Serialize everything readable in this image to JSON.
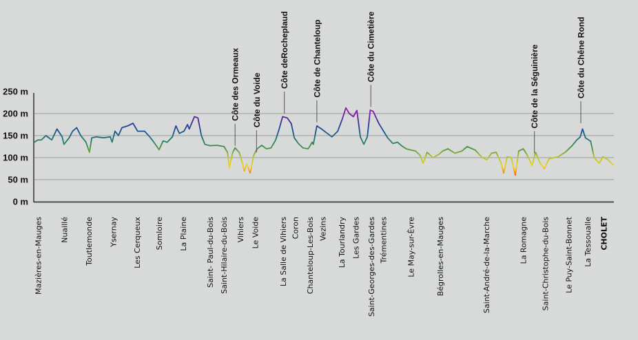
{
  "chart_data": {
    "type": "line",
    "title": "",
    "xlabel": "",
    "ylabel": "",
    "x_unit": "percent of route",
    "xlim": [
      0,
      100
    ],
    "ylim": [
      0,
      250
    ],
    "grid": true,
    "y_ticks": [
      {
        "value": 0,
        "label": "0 m"
      },
      {
        "value": 50,
        "label": "50 m"
      },
      {
        "value": 100,
        "label": "100 m"
      },
      {
        "value": 150,
        "label": "150 m"
      },
      {
        "value": 200,
        "label": "200 m"
      },
      {
        "value": 250,
        "label": "250 m"
      }
    ],
    "color_scale": [
      {
        "elev": 50,
        "color": "#e8261c"
      },
      {
        "elev": 65,
        "color": "#f08a1a"
      },
      {
        "elev": 80,
        "color": "#f2d21c"
      },
      {
        "elev": 100,
        "color": "#b9c62a"
      },
      {
        "elev": 120,
        "color": "#4f9440"
      },
      {
        "elev": 140,
        "color": "#1f7a6e"
      },
      {
        "elev": 160,
        "color": "#18528f"
      },
      {
        "elev": 180,
        "color": "#3a2f9a"
      },
      {
        "elev": 200,
        "color": "#7b1fa2"
      },
      {
        "elev": 215,
        "color": "#9a1fb0"
      }
    ],
    "profile": [
      [
        0.1,
        135
      ],
      [
        0.7,
        140
      ],
      [
        1.3,
        140
      ],
      [
        2.1,
        150
      ],
      [
        3.1,
        140
      ],
      [
        4.0,
        165
      ],
      [
        4.9,
        147
      ],
      [
        5.2,
        130
      ],
      [
        6.1,
        145
      ],
      [
        6.7,
        160
      ],
      [
        7.4,
        168
      ],
      [
        8.1,
        150
      ],
      [
        9.0,
        135
      ],
      [
        9.6,
        112
      ],
      [
        10.0,
        145
      ],
      [
        10.8,
        147
      ],
      [
        12.0,
        145
      ],
      [
        13.2,
        147
      ],
      [
        13.5,
        135
      ],
      [
        14.0,
        160
      ],
      [
        14.6,
        150
      ],
      [
        15.2,
        168
      ],
      [
        16.2,
        172
      ],
      [
        17.1,
        178
      ],
      [
        17.9,
        160
      ],
      [
        19.1,
        160
      ],
      [
        20.0,
        147
      ],
      [
        20.7,
        135
      ],
      [
        21.6,
        118
      ],
      [
        22.3,
        138
      ],
      [
        23.0,
        135
      ],
      [
        23.9,
        147
      ],
      [
        24.5,
        172
      ],
      [
        25.1,
        155
      ],
      [
        25.9,
        160
      ],
      [
        26.5,
        175
      ],
      [
        26.8,
        165
      ],
      [
        27.7,
        193
      ],
      [
        28.3,
        190
      ],
      [
        28.9,
        150
      ],
      [
        29.5,
        130
      ],
      [
        30.4,
        127
      ],
      [
        31.6,
        128
      ],
      [
        32.8,
        125
      ],
      [
        33.4,
        112
      ],
      [
        33.7,
        77
      ],
      [
        34.3,
        112
      ],
      [
        34.7,
        122
      ],
      [
        35.4,
        112
      ],
      [
        35.7,
        100
      ],
      [
        36.3,
        70
      ],
      [
        36.7,
        85
      ],
      [
        37.3,
        65
      ],
      [
        37.9,
        105
      ],
      [
        38.5,
        120
      ],
      [
        39.3,
        128
      ],
      [
        40.1,
        120
      ],
      [
        40.9,
        122
      ],
      [
        41.7,
        140
      ],
      [
        42.3,
        165
      ],
      [
        42.9,
        193
      ],
      [
        43.7,
        190
      ],
      [
        44.4,
        177
      ],
      [
        44.9,
        145
      ],
      [
        45.6,
        132
      ],
      [
        46.4,
        122
      ],
      [
        47.3,
        120
      ],
      [
        48.0,
        135
      ],
      [
        48.2,
        130
      ],
      [
        48.8,
        172
      ],
      [
        49.6,
        165
      ],
      [
        50.6,
        155
      ],
      [
        51.4,
        147
      ],
      [
        52.4,
        160
      ],
      [
        53.2,
        188
      ],
      [
        53.8,
        213
      ],
      [
        54.4,
        200
      ],
      [
        55.1,
        193
      ],
      [
        55.7,
        207
      ],
      [
        56.3,
        147
      ],
      [
        56.9,
        130
      ],
      [
        57.5,
        147
      ],
      [
        58.0,
        208
      ],
      [
        58.5,
        205
      ],
      [
        59.5,
        177
      ],
      [
        60.3,
        160
      ],
      [
        61.0,
        145
      ],
      [
        61.9,
        132
      ],
      [
        62.7,
        135
      ],
      [
        63.4,
        127
      ],
      [
        64.2,
        120
      ],
      [
        65.1,
        117
      ],
      [
        65.8,
        115
      ],
      [
        66.6,
        105
      ],
      [
        67.1,
        87
      ],
      [
        67.8,
        112
      ],
      [
        68.8,
        100
      ],
      [
        69.8,
        107
      ],
      [
        70.5,
        115
      ],
      [
        71.4,
        120
      ],
      [
        72.6,
        110
      ],
      [
        73.8,
        115
      ],
      [
        74.7,
        125
      ],
      [
        76.1,
        117
      ],
      [
        77.3,
        100
      ],
      [
        78.1,
        95
      ],
      [
        78.9,
        110
      ],
      [
        79.7,
        112
      ],
      [
        80.5,
        90
      ],
      [
        81.0,
        65
      ],
      [
        81.6,
        102
      ],
      [
        82.3,
        100
      ],
      [
        83.0,
        60
      ],
      [
        83.6,
        115
      ],
      [
        84.4,
        120
      ],
      [
        85.0,
        107
      ],
      [
        85.9,
        82
      ],
      [
        86.5,
        112
      ],
      [
        87.3,
        87
      ],
      [
        88.0,
        75
      ],
      [
        88.8,
        97
      ],
      [
        90.4,
        102
      ],
      [
        91.6,
        112
      ],
      [
        92.8,
        127
      ],
      [
        93.6,
        140
      ],
      [
        94.2,
        147
      ],
      [
        94.6,
        165
      ],
      [
        95.1,
        145
      ],
      [
        96.0,
        137
      ],
      [
        96.6,
        100
      ],
      [
        97.5,
        87
      ],
      [
        98.1,
        102
      ],
      [
        99.0,
        95
      ],
      [
        100,
        82
      ]
    ],
    "towns": [
      {
        "name": "Mazières-en-Mauges",
        "pos": 0.8
      },
      {
        "name": "Nuaillé",
        "pos": 5.3
      },
      {
        "name": "Toutlemonde",
        "pos": 9.5
      },
      {
        "name": "Ysernay",
        "pos": 13.7
      },
      {
        "name": "Les Cerqueux",
        "pos": 17.8
      },
      {
        "name": "Somloire",
        "pos": 21.6
      },
      {
        "name": "La Plaine",
        "pos": 25.8
      },
      {
        "name": "Saint- Paul-du-Bois",
        "pos": 30.4
      },
      {
        "name": "Saint-Hilaire-du-Bois",
        "pos": 32.8
      },
      {
        "name": "Vihiers",
        "pos": 35.6
      },
      {
        "name": "Le Voide",
        "pos": 38.2
      },
      {
        "name": "La Salle de Vihiers",
        "pos": 43.0
      },
      {
        "name": "Coron",
        "pos": 45.1
      },
      {
        "name": "Chanteloup-Les-Bois",
        "pos": 47.6
      },
      {
        "name": "Vezins",
        "pos": 49.8
      },
      {
        "name": "La Tourlandry",
        "pos": 53.1
      },
      {
        "name": "Les Gardes",
        "pos": 55.5
      },
      {
        "name": "Saint-Georges-des-Gardes",
        "pos": 58.2
      },
      {
        "name": "Trémentines",
        "pos": 60.3
      },
      {
        "name": "Le May-sur-Èvre",
        "pos": 65.0
      },
      {
        "name": "Bégrolles-en-Mauges",
        "pos": 70.1
      },
      {
        "name": "Saint-André-de-la-Marche",
        "pos": 78.0
      },
      {
        "name": "La Romagne",
        "pos": 84.4
      },
      {
        "name": "Saint-Christophe-du-Bois",
        "pos": 88.2
      },
      {
        "name": "Le Puy-Saint-Bonnet",
        "pos": 92.2
      },
      {
        "name": "La Tessoualle",
        "pos": 95.5
      },
      {
        "name": "CHOLET",
        "pos": 98.3,
        "finish": true
      }
    ],
    "climbs": [
      {
        "name": "Côte des Ormeaux",
        "pos": 34.7,
        "elev": 127
      },
      {
        "name": "Côte du Voide",
        "pos": 38.4,
        "elev": 112
      },
      {
        "name": "Côte deRochepIaud",
        "pos": 43.2,
        "elev": 200
      },
      {
        "name": "Côte de Chanteloup",
        "pos": 48.8,
        "elev": 180
      },
      {
        "name": "Côte du Cimetière",
        "pos": 58.1,
        "elev": 215
      },
      {
        "name": "Côte de la Séguinière",
        "pos": 86.3,
        "elev": 110
      },
      {
        "name": "Côte du Chêne Rond",
        "pos": 94.3,
        "elev": 178
      }
    ]
  }
}
